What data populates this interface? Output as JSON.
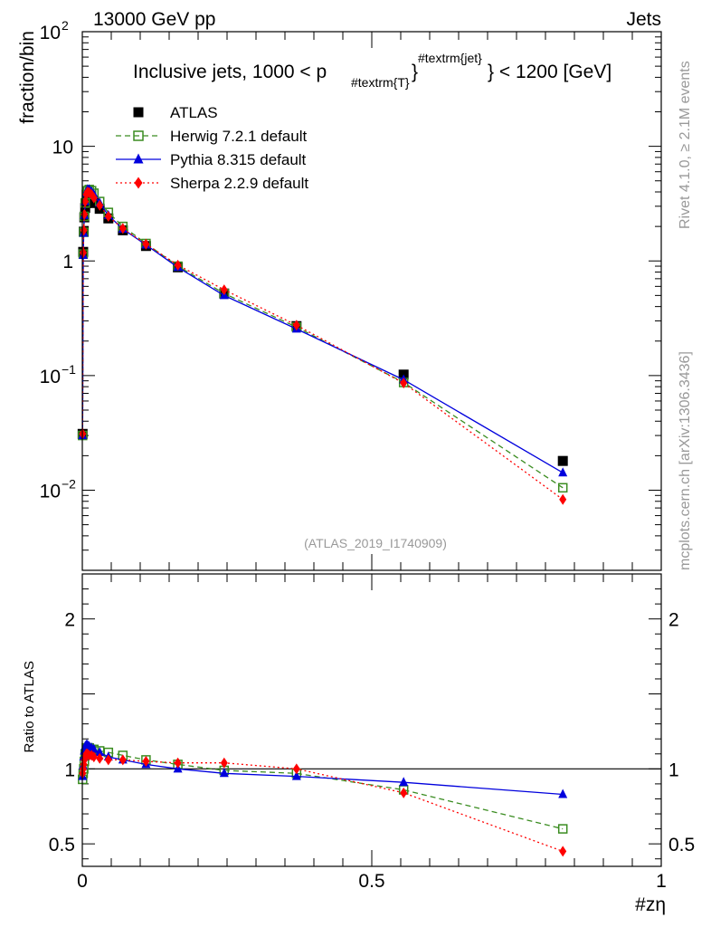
{
  "chart_data": {
    "type": "scatter",
    "header_left": "13000 GeV pp",
    "header_right": "Jets",
    "title_main": "Inclusive jets, 1000 < p",
    "title_sub": "#textrm{T}",
    "title_sup": "#textrm{jet}",
    "title_end": "} < 1200 [GeV]",
    "ylabel": "fraction/bin",
    "ratio_ylabel": "Ratio to ATLAS",
    "xlabel": "#zη",
    "analysis_id": "(ATLAS_2019_I1740909)",
    "side_text_top": "Rivet 4.1.0, ≥ 2.1M events",
    "side_text_bottom": "mcplots.cern.ch [arXiv:1306.3436]",
    "xlim": [
      0,
      1
    ],
    "ylim_log": [
      0.002,
      100
    ],
    "ratio_ylim": [
      0.35,
      2.3
    ],
    "x_ticks": [
      {
        "value": 0,
        "label": "0"
      },
      {
        "value": 0.5,
        "label": "0.5"
      },
      {
        "value": 1,
        "label": "1"
      }
    ],
    "y_ticks": [
      {
        "value": 100,
        "label": "10",
        "exp": "2"
      },
      {
        "value": 10,
        "label": "10",
        "exp": ""
      },
      {
        "value": 1,
        "label": "1",
        "exp": ""
      },
      {
        "value": 0.1,
        "label": "10",
        "exp": "−1"
      },
      {
        "value": 0.01,
        "label": "10",
        "exp": "−2"
      }
    ],
    "ratio_ticks": [
      {
        "value": 0.5,
        "label": "0.5"
      },
      {
        "value": 1,
        "label": "1"
      },
      {
        "value": 2,
        "label": "2"
      }
    ],
    "x": [
      0.0005,
      0.0015,
      0.0025,
      0.0035,
      0.005,
      0.007,
      0.009,
      0.012,
      0.016,
      0.02,
      0.03,
      0.045,
      0.07,
      0.11,
      0.165,
      0.245,
      0.37,
      0.555,
      0.83
    ],
    "series": [
      {
        "name": "ATLAS",
        "color": "#000000",
        "marker": "square",
        "values": [
          0.031,
          1.2,
          1.8,
          2.4,
          2.9,
          3.2,
          3.4,
          3.4,
          3.3,
          3.2,
          2.85,
          2.35,
          1.85,
          1.35,
          0.88,
          0.52,
          0.27,
          0.102,
          0.018
        ],
        "ratio": [
          1,
          1,
          1,
          1,
          1,
          1,
          1,
          1,
          1,
          1,
          1,
          1,
          1,
          1,
          1,
          1,
          1,
          1,
          1
        ]
      },
      {
        "name": "Herwig 7.2.1 default",
        "color": "#3a8c20",
        "marker": "open-square",
        "dash": "6,4",
        "values": [
          0.03,
          1.15,
          1.78,
          2.45,
          3.2,
          3.8,
          4.1,
          4.2,
          4.1,
          3.9,
          3.3,
          2.65,
          2.0,
          1.42,
          0.9,
          0.52,
          0.265,
          0.087,
          0.0105
        ],
        "ratio": [
          0.93,
          0.97,
          1.0,
          1.05,
          1.1,
          1.14,
          1.14,
          1.14,
          1.13,
          1.13,
          1.12,
          1.11,
          1.09,
          1.06,
          1.03,
          0.99,
          0.97,
          0.86,
          0.6
        ]
      },
      {
        "name": "Pythia 8.315 default",
        "color": "#0000dd",
        "marker": "triangle",
        "values": [
          0.03,
          1.12,
          1.75,
          2.5,
          3.3,
          3.9,
          4.2,
          4.2,
          4.0,
          3.8,
          3.2,
          2.5,
          1.9,
          1.38,
          0.88,
          0.5,
          0.255,
          0.092,
          0.0142
        ],
        "ratio": [
          0.95,
          1.02,
          1.08,
          1.12,
          1.15,
          1.16,
          1.16,
          1.15,
          1.14,
          1.13,
          1.11,
          1.08,
          1.06,
          1.03,
          1.0,
          0.97,
          0.95,
          0.91,
          0.83
        ]
      },
      {
        "name": "Sherpa 2.2.9 default",
        "color": "#ff0000",
        "marker": "diamond",
        "dash": "2,3",
        "values": [
          0.031,
          1.18,
          1.85,
          2.55,
          3.3,
          3.8,
          4.0,
          3.95,
          3.8,
          3.55,
          3.05,
          2.45,
          1.92,
          1.4,
          0.92,
          0.56,
          0.275,
          0.086,
          0.0083
        ],
        "ratio": [
          0.97,
          1.0,
          1.03,
          1.06,
          1.08,
          1.1,
          1.1,
          1.09,
          1.09,
          1.08,
          1.07,
          1.06,
          1.06,
          1.05,
          1.04,
          1.04,
          1.0,
          0.84,
          0.45
        ]
      }
    ]
  }
}
